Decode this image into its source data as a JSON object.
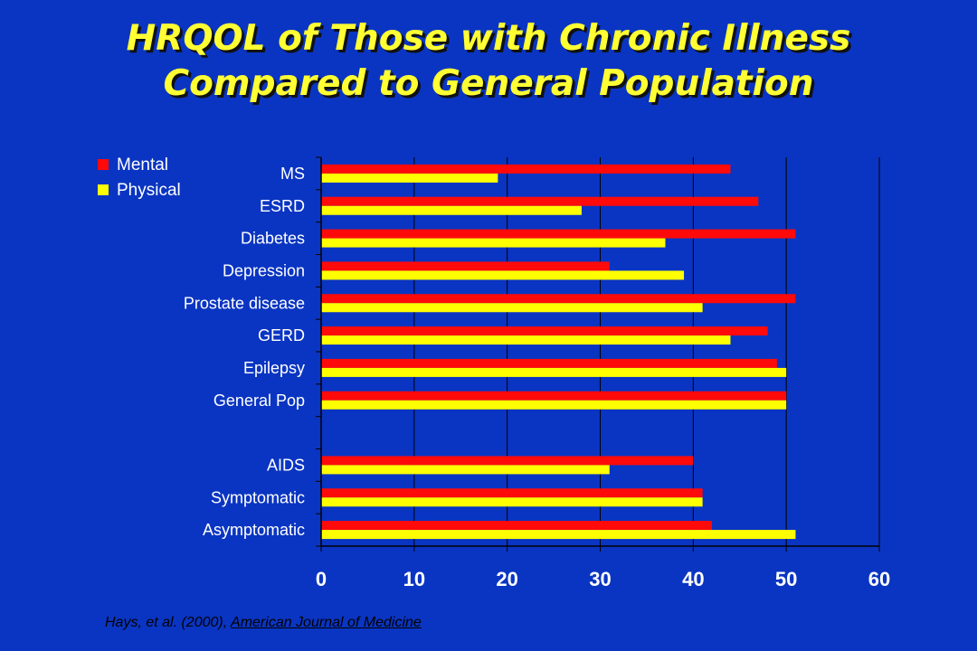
{
  "title": {
    "line1": "HRQOL of Those with Chronic Illness",
    "line2": "Compared to General Population"
  },
  "source": {
    "text": "Hays,  et al. (2000), ",
    "journal": "American Journal of Medicine"
  },
  "chart_data": {
    "type": "bar",
    "orientation": "horizontal",
    "categories": [
      "MS",
      "ESRD",
      "Diabetes",
      "Depression",
      "Prostate disease",
      "GERD",
      "Epilepsy",
      "General Pop",
      "",
      "AIDS",
      "Symptomatic",
      "Asymptomatic"
    ],
    "series": [
      {
        "name": "Mental",
        "color": "#ff0a0a",
        "values": [
          44,
          47,
          51,
          31,
          51,
          48,
          49,
          50,
          null,
          40,
          41,
          42
        ]
      },
      {
        "name": "Physical",
        "color": "#ffff00",
        "values": [
          19,
          28,
          37,
          39,
          41,
          44,
          50,
          50,
          null,
          31,
          41,
          51
        ]
      }
    ],
    "xlim": [
      0,
      60
    ],
    "xticks": [
      0,
      10,
      20,
      30,
      40,
      50,
      60
    ],
    "grid": "vertical",
    "legend": "top-left",
    "title": "",
    "xlabel": "",
    "ylabel": ""
  }
}
